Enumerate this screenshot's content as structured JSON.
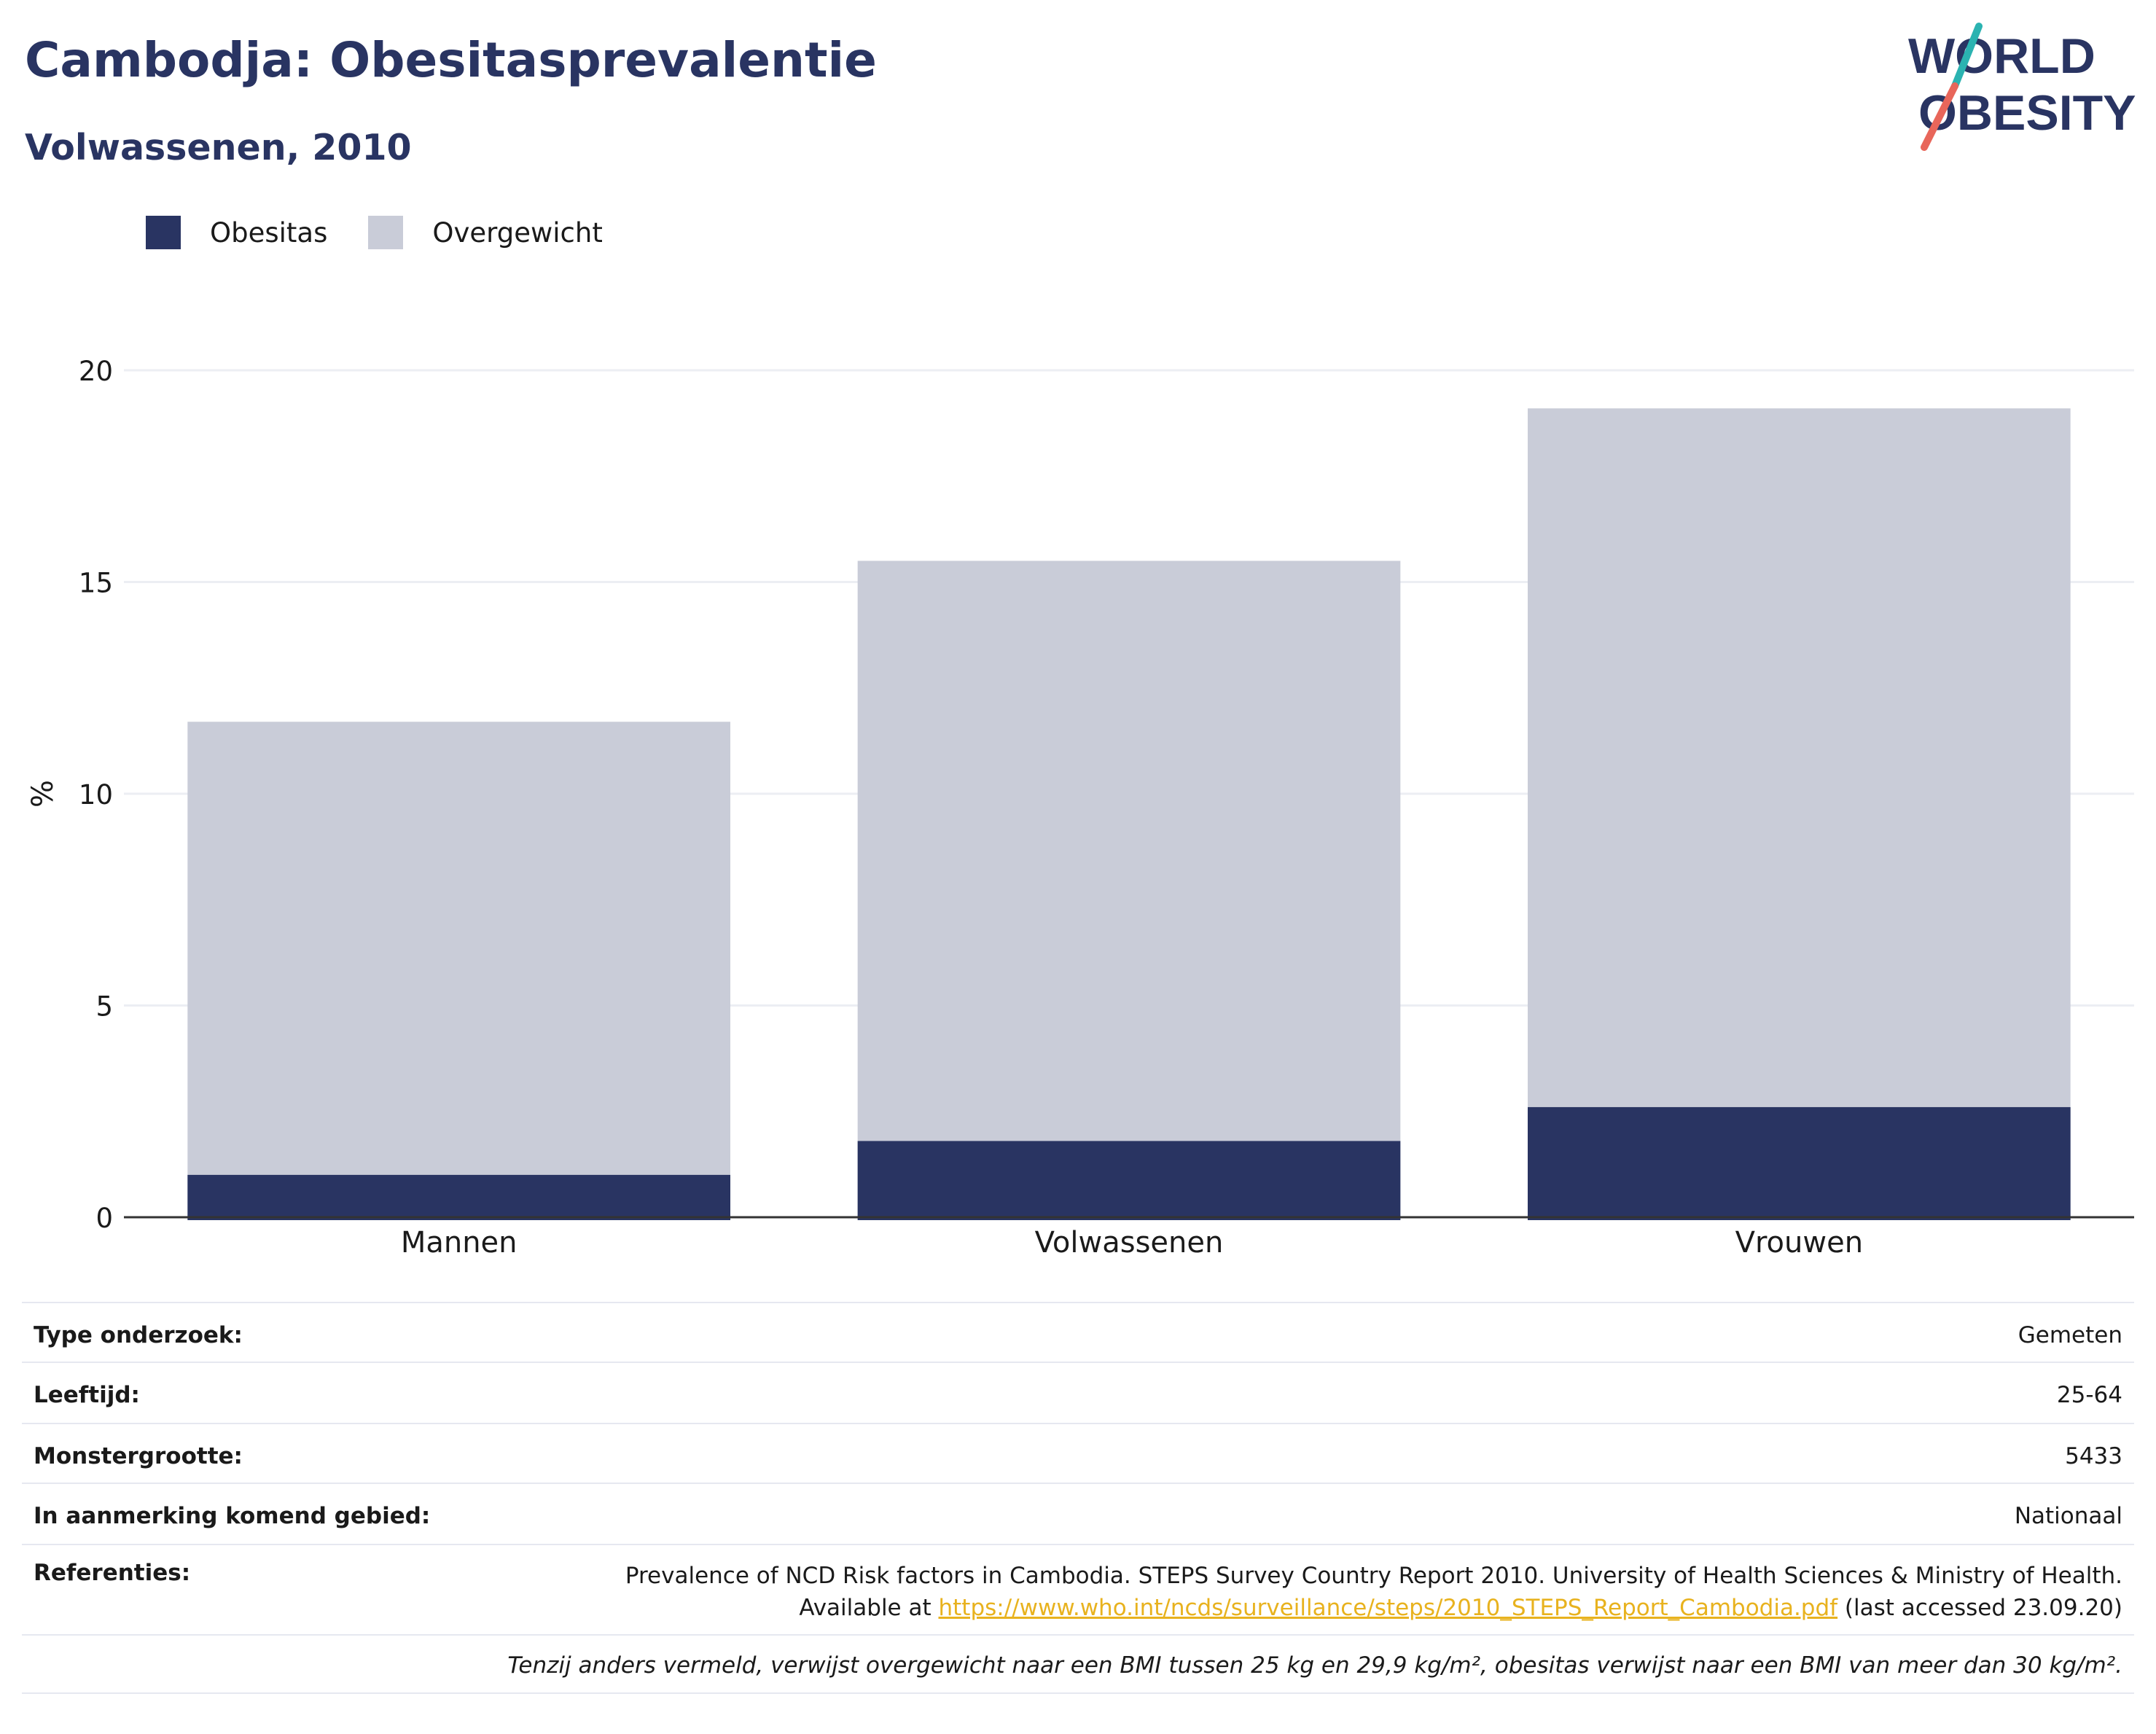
{
  "header": {
    "title": "Cambodja: Obesitasprevalentie",
    "subtitle": "Volwassenen, 2010"
  },
  "logo": {
    "line1": "WORLD",
    "line2": "OBESITY",
    "colors": {
      "text": "#293462",
      "slash_top": "#2bb3b1",
      "slash_bottom": "#e8665a"
    }
  },
  "legend": {
    "items": [
      {
        "label": "Obesitas",
        "color": "#293462"
      },
      {
        "label": "Overgewicht",
        "color": "#c9ccd8"
      }
    ]
  },
  "chart_data": {
    "type": "bar",
    "stacked": "overlay",
    "categories": [
      "Mannen",
      "Volwassenen",
      "Vrouwen"
    ],
    "series": [
      {
        "name": "Overgewicht",
        "values": [
          11.7,
          15.5,
          19.1
        ],
        "color": "#c9ccd8"
      },
      {
        "name": "Obesitas",
        "values": [
          1.0,
          1.8,
          2.6
        ],
        "color": "#293462"
      }
    ],
    "ylabel": "%",
    "ylim": [
      0,
      20
    ],
    "yticks": [
      0,
      5,
      10,
      15,
      20
    ],
    "grid": true,
    "legend_position": "top-left"
  },
  "info": {
    "rows": [
      {
        "label": "Type onderzoek:",
        "value": "Gemeten"
      },
      {
        "label": "Leeftijd:",
        "value": "25-64"
      },
      {
        "label": "Monstergrootte:",
        "value": "5433"
      },
      {
        "label": "In aanmerking komend gebied:",
        "value": "Nationaal"
      }
    ],
    "references": {
      "label": "Referenties:",
      "line1": "Prevalence of NCD Risk factors in Cambodia. STEPS Survey Country Report 2010. University of Health Sciences & Ministry of Health.",
      "line2_prefix": "Available at ",
      "link": "https://www.who.int/ncds/surveillance/steps/2010_STEPS_Report_Cambodia.pdf",
      "line2_suffix": " (last accessed 23.09.20)"
    },
    "note": "Tenzij anders vermeld, verwijst overgewicht naar een BMI tussen 25 kg en 29,9 kg/m², obesitas verwijst naar een BMI van meer dan 30 kg/m²."
  }
}
